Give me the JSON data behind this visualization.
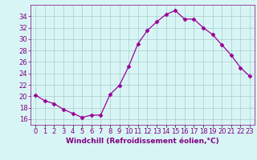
{
  "hours": [
    0,
    1,
    2,
    3,
    4,
    5,
    6,
    7,
    8,
    9,
    10,
    11,
    12,
    13,
    14,
    15,
    16,
    17,
    18,
    19,
    20,
    21,
    22,
    23
  ],
  "values": [
    20.2,
    19.2,
    18.7,
    17.7,
    17.0,
    16.3,
    16.7,
    16.7,
    20.3,
    21.9,
    25.2,
    29.2,
    31.5,
    33.0,
    34.3,
    35.0,
    33.5,
    33.5,
    32.0,
    30.8,
    29.0,
    27.2,
    25.0,
    23.5
  ],
  "line_color": "#990099",
  "marker": "D",
  "marker_size": 2.5,
  "bg_color": "#d8f5f5",
  "grid_color": "#aacccc",
  "xlabel": "Windchill (Refroidissement éolien,°C)",
  "xlabel_color": "#800080",
  "ylim": [
    15,
    36
  ],
  "yticks": [
    16,
    18,
    20,
    22,
    24,
    26,
    28,
    30,
    32,
    34
  ],
  "tick_fontsize": 6.0,
  "label_fontsize": 6.5,
  "figsize": [
    3.2,
    2.0
  ],
  "dpi": 100
}
